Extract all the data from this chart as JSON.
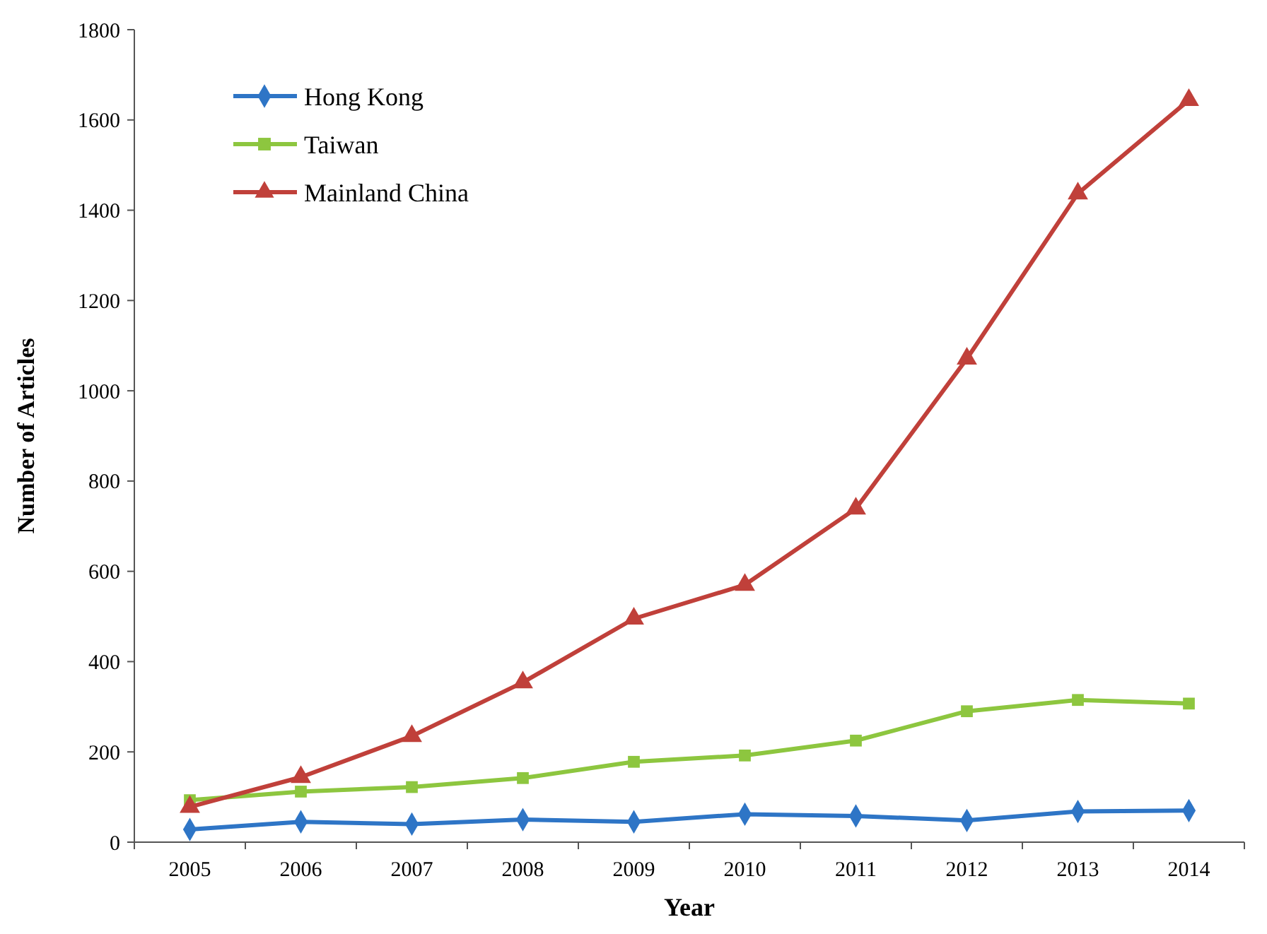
{
  "chart_data": {
    "type": "line",
    "xlabel": "Year",
    "ylabel": "Number of Articles",
    "categories": [
      "2005",
      "2006",
      "2007",
      "2008",
      "2009",
      "2010",
      "2011",
      "2012",
      "2013",
      "2014"
    ],
    "ylim": [
      0,
      1800
    ],
    "yticks": [
      0,
      200,
      400,
      600,
      800,
      1000,
      1200,
      1400,
      1600,
      1800
    ],
    "grid": false,
    "legend": "top left",
    "series": [
      {
        "name": "Hong Kong",
        "color": "#2e75c6",
        "marker": "diamond",
        "values": [
          28,
          45,
          40,
          50,
          45,
          62,
          58,
          48,
          68,
          70
        ]
      },
      {
        "name": "Taiwan",
        "color": "#8dc63f",
        "marker": "square",
        "values": [
          93,
          112,
          122,
          142,
          178,
          192,
          225,
          290,
          315,
          307
        ]
      },
      {
        "name": "Mainland China",
        "color": "#c0403a",
        "marker": "triangle",
        "values": [
          78,
          144,
          235,
          354,
          495,
          570,
          739,
          1071,
          1437,
          1644
        ]
      }
    ]
  }
}
